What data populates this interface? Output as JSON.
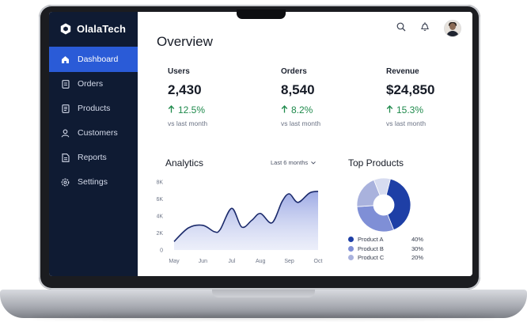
{
  "brand": {
    "name": "OlalaTech"
  },
  "sidebar": {
    "items": [
      {
        "label": "Dashboard",
        "icon": "home-icon",
        "active": true
      },
      {
        "label": "Orders",
        "icon": "orders-icon"
      },
      {
        "label": "Products",
        "icon": "products-icon"
      },
      {
        "label": "Customers",
        "icon": "customers-icon"
      },
      {
        "label": "Reports",
        "icon": "reports-icon"
      },
      {
        "label": "Settings",
        "icon": "settings-icon"
      }
    ]
  },
  "header": {
    "title": "Overview",
    "icons": [
      "search-icon",
      "bell-icon",
      "avatar"
    ]
  },
  "stats": [
    {
      "label": "Users",
      "value": "2,430",
      "change": "12.5%",
      "sub": "vs last month"
    },
    {
      "label": "Orders",
      "value": "8,540",
      "change": "8.2%",
      "sub": "vs last month"
    },
    {
      "label": "Revenue",
      "value": "$24,850",
      "change": "15.3%",
      "sub": "vs last month"
    }
  ],
  "analytics": {
    "title": "Analytics",
    "range_label": "Last 6 months"
  },
  "top_products": {
    "title": "Top Products",
    "items": [
      {
        "name": "Product A",
        "pct": "40%",
        "color": "#1e3fa6"
      },
      {
        "name": "Product B",
        "pct": "30%",
        "color": "#7f8fd6"
      },
      {
        "name": "Product C",
        "pct": "20%",
        "color": "#a9b2dd"
      }
    ]
  },
  "colors": {
    "accent": "#2a5bd7",
    "sidebar": "#0f1b33",
    "positive": "#1f8a4c"
  },
  "chart_data": [
    {
      "type": "area",
      "title": "Analytics",
      "x": [
        "May",
        "Jun",
        "Jul",
        "Aug",
        "Sep",
        "Oct"
      ],
      "yticks": [
        "0",
        "2K",
        "4K",
        "6K",
        "8K"
      ],
      "ylim": [
        0,
        8000
      ],
      "points": [
        [
          0,
          1000
        ],
        [
          0.5,
          2600
        ],
        [
          1,
          2900
        ],
        [
          1.4,
          2150
        ],
        [
          1.6,
          2400
        ],
        [
          2,
          4900
        ],
        [
          2.35,
          2700
        ],
        [
          2.7,
          3500
        ],
        [
          3,
          4300
        ],
        [
          3.4,
          3200
        ],
        [
          3.75,
          5700
        ],
        [
          4,
          6600
        ],
        [
          4.3,
          5600
        ],
        [
          4.7,
          6700
        ],
        [
          5,
          6900
        ]
      ]
    },
    {
      "type": "pie",
      "title": "Top Products",
      "labels": [
        "Product A",
        "Product B",
        "Product C"
      ],
      "values": [
        40,
        30,
        20
      ]
    }
  ]
}
